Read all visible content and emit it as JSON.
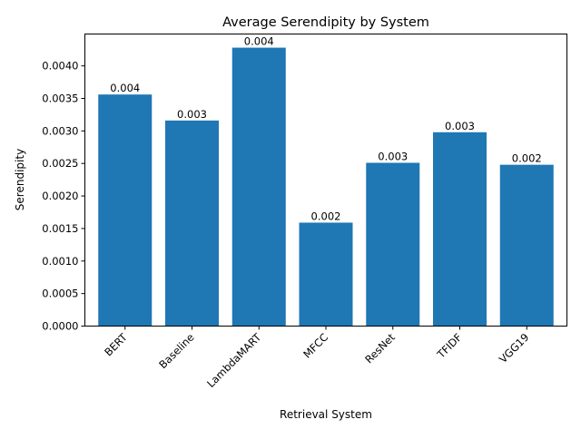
{
  "chart_data": {
    "type": "bar",
    "title": "Average Serendipity by System",
    "xlabel": "Retrieval System",
    "ylabel": "Serendipity",
    "categories": [
      "BERT",
      "Baseline",
      "LambdaMART",
      "MFCC",
      "ResNet",
      "TFIDF",
      "VGG19"
    ],
    "values": [
      0.00356,
      0.00316,
      0.00428,
      0.00159,
      0.00251,
      0.00298,
      0.00248
    ],
    "data_labels": [
      "0.004",
      "0.003",
      "0.004",
      "0.002",
      "0.003",
      "0.003",
      "0.002"
    ],
    "ylim": [
      0,
      0.00449
    ],
    "yticks": [
      0.0,
      0.0005,
      0.001,
      0.0015,
      0.002,
      0.0025,
      0.003,
      0.0035,
      0.004
    ],
    "ytick_labels": [
      "0.0000",
      "0.0005",
      "0.0010",
      "0.0015",
      "0.0020",
      "0.0025",
      "0.0030",
      "0.0035",
      "0.0040"
    ],
    "grid": false,
    "legend": "none",
    "bar_color": "#1f77b4"
  }
}
